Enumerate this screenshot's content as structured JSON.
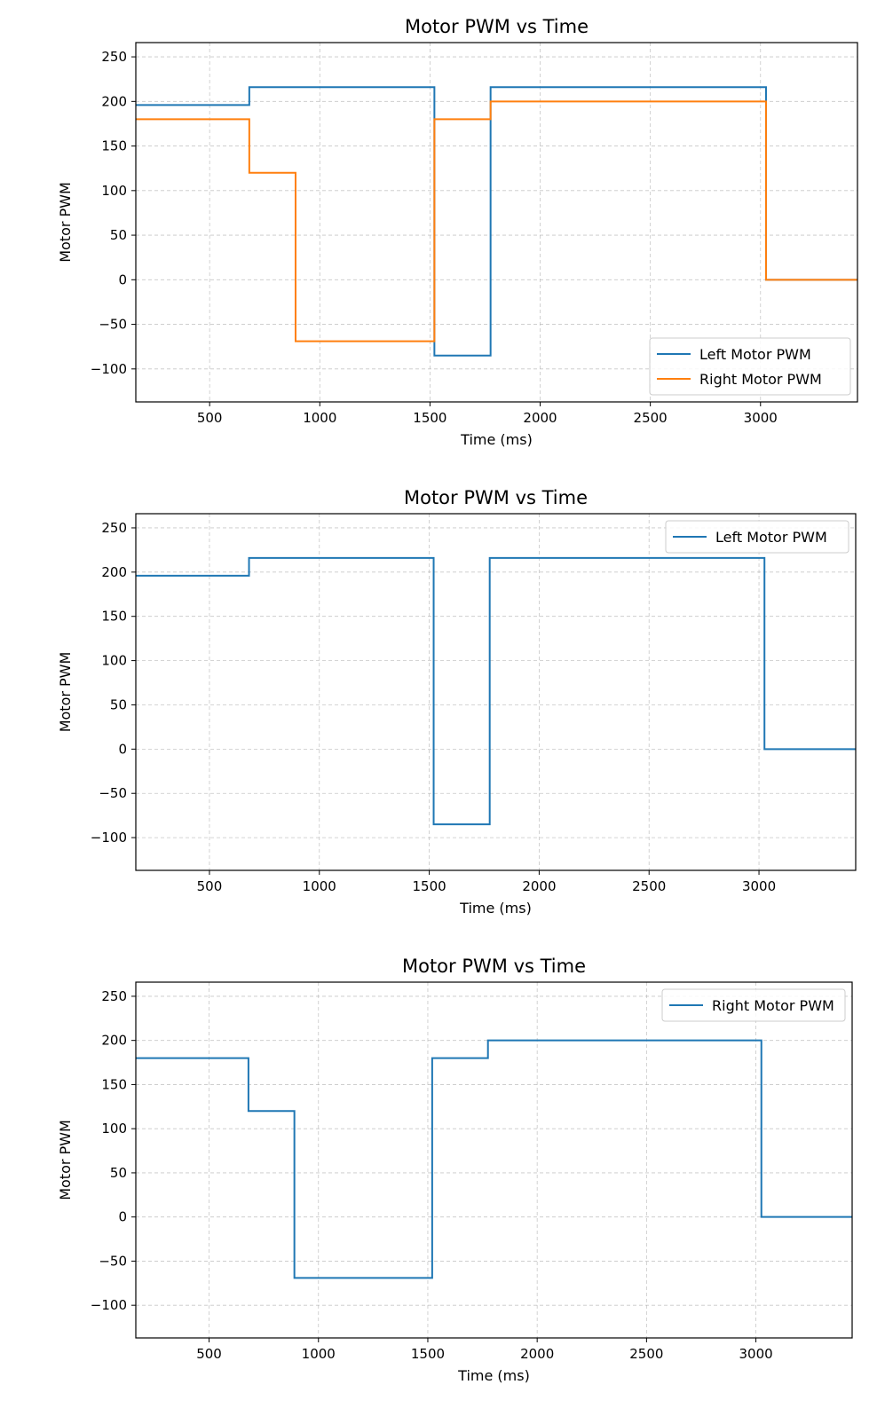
{
  "chart_data": [
    {
      "type": "line",
      "title": "Motor PWM vs Time",
      "xlabel": "Time (ms)",
      "ylabel": "Motor PWM",
      "xlim": [
        165,
        3440
      ],
      "ylim": [
        -137,
        266
      ],
      "xticks": [
        500,
        1000,
        1500,
        2000,
        2500,
        3000
      ],
      "yticks": [
        -100,
        -50,
        0,
        50,
        100,
        150,
        200,
        250
      ],
      "ytick_labels": [
        "−100",
        "−50",
        "0",
        "50",
        "100",
        "150",
        "200",
        "250"
      ],
      "grid": true,
      "legend_position": "lower right",
      "series": [
        {
          "name": "Left Motor PWM",
          "color": "#1f77b4",
          "x": [
            165,
            680,
            680,
            1520,
            1520,
            1775,
            1775,
            3025,
            3025,
            3440
          ],
          "y": [
            196,
            196,
            216,
            216,
            -85,
            -85,
            216,
            216,
            0,
            0
          ]
        },
        {
          "name": "Right Motor PWM",
          "color": "#ff7f0e",
          "x": [
            165,
            680,
            680,
            890,
            890,
            1520,
            1520,
            1775,
            1775,
            3025,
            3025,
            3440
          ],
          "y": [
            180,
            180,
            120,
            120,
            -69,
            -69,
            180,
            180,
            200,
            200,
            0,
            0
          ]
        }
      ]
    },
    {
      "type": "line",
      "title": "Motor PWM vs Time",
      "xlabel": "Time (ms)",
      "ylabel": "Motor PWM",
      "xlim": [
        165,
        3440
      ],
      "ylim": [
        -137,
        266
      ],
      "xticks": [
        500,
        1000,
        1500,
        2000,
        2500,
        3000
      ],
      "yticks": [
        -100,
        -50,
        0,
        50,
        100,
        150,
        200,
        250
      ],
      "ytick_labels": [
        "−100",
        "−50",
        "0",
        "50",
        "100",
        "150",
        "200",
        "250"
      ],
      "grid": true,
      "legend_position": "upper right",
      "series": [
        {
          "name": "Left Motor PWM",
          "color": "#1f77b4",
          "x": [
            165,
            680,
            680,
            1520,
            1520,
            1775,
            1775,
            3025,
            3025,
            3440
          ],
          "y": [
            196,
            196,
            216,
            216,
            -85,
            -85,
            216,
            216,
            0,
            0
          ]
        }
      ]
    },
    {
      "type": "line",
      "title": "Motor PWM vs Time",
      "xlabel": "Time (ms)",
      "ylabel": "Motor PWM",
      "xlim": [
        165,
        3440
      ],
      "ylim": [
        -137,
        266
      ],
      "xticks": [
        500,
        1000,
        1500,
        2000,
        2500,
        3000
      ],
      "yticks": [
        -100,
        -50,
        0,
        50,
        100,
        150,
        200,
        250
      ],
      "ytick_labels": [
        "−100",
        "−50",
        "0",
        "50",
        "100",
        "150",
        "200",
        "250"
      ],
      "grid": true,
      "legend_position": "upper right",
      "series": [
        {
          "name": "Right Motor PWM",
          "color": "#1f77b4",
          "x": [
            165,
            680,
            680,
            890,
            890,
            1520,
            1520,
            1775,
            1775,
            3025,
            3025,
            3440
          ],
          "y": [
            180,
            180,
            120,
            120,
            -69,
            -69,
            180,
            180,
            200,
            200,
            0,
            0
          ]
        }
      ]
    }
  ]
}
